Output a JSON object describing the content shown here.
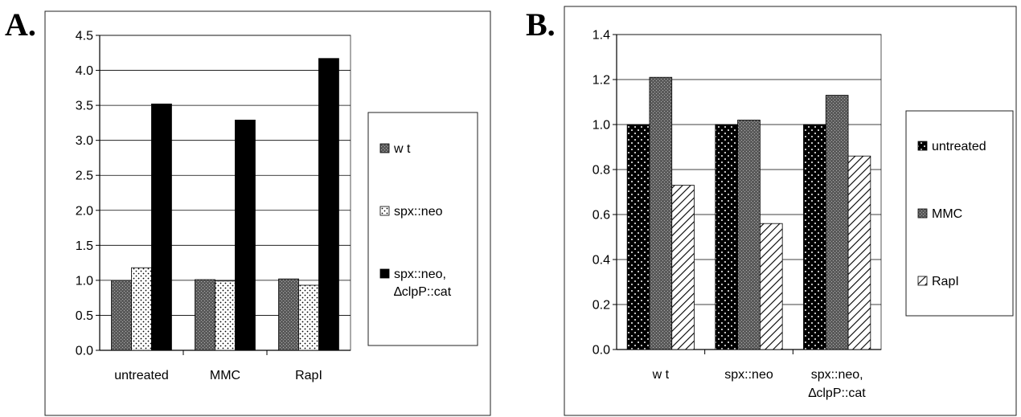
{
  "chart_data": [
    {
      "panel_label": "A.",
      "type": "bar",
      "categories": [
        "untreated",
        "MMC",
        "RapI"
      ],
      "series": [
        {
          "name": "w t",
          "values": [
            1.0,
            1.01,
            1.02
          ],
          "pattern": "gray-stipple"
        },
        {
          "name": "spx::neo",
          "values": [
            1.18,
            0.99,
            0.93
          ],
          "pattern": "light-dots"
        },
        {
          "name": "spx::neo, ∆clpP::cat",
          "name_lines": [
            "spx::neo,",
            "∆clpP::cat"
          ],
          "values": [
            3.52,
            3.29,
            4.17
          ],
          "pattern": "black"
        }
      ],
      "ylim": [
        0,
        4.5
      ],
      "yticks": [
        "0.0",
        "0.5",
        "1.0",
        "1.5",
        "2.0",
        "2.5",
        "3.0",
        "3.5",
        "4.0",
        "4.5"
      ],
      "xlabel": "",
      "ylabel": "",
      "grid": true,
      "legend_position": "right"
    },
    {
      "panel_label": "B.",
      "type": "bar",
      "categories": [
        "w t",
        "spx::neo",
        "spx::neo, ∆clpP::cat"
      ],
      "category_lines": [
        [
          "w t"
        ],
        [
          "spx::neo"
        ],
        [
          "spx::neo,",
          "∆clpP::cat"
        ]
      ],
      "series": [
        {
          "name": "untreated",
          "values": [
            1.0,
            1.0,
            1.0
          ],
          "pattern": "black-dots"
        },
        {
          "name": "MMC",
          "values": [
            1.21,
            1.02,
            1.13
          ],
          "pattern": "gray-stipple"
        },
        {
          "name": "RapI",
          "values": [
            0.73,
            0.56,
            0.86
          ],
          "pattern": "hatch"
        }
      ],
      "ylim": [
        0,
        1.4
      ],
      "yticks": [
        "0.0",
        "0.2",
        "0.4",
        "0.6",
        "0.8",
        "1.0",
        "1.2",
        "1.4"
      ],
      "xlabel": "",
      "ylabel": "",
      "grid": true,
      "legend_position": "right"
    }
  ]
}
